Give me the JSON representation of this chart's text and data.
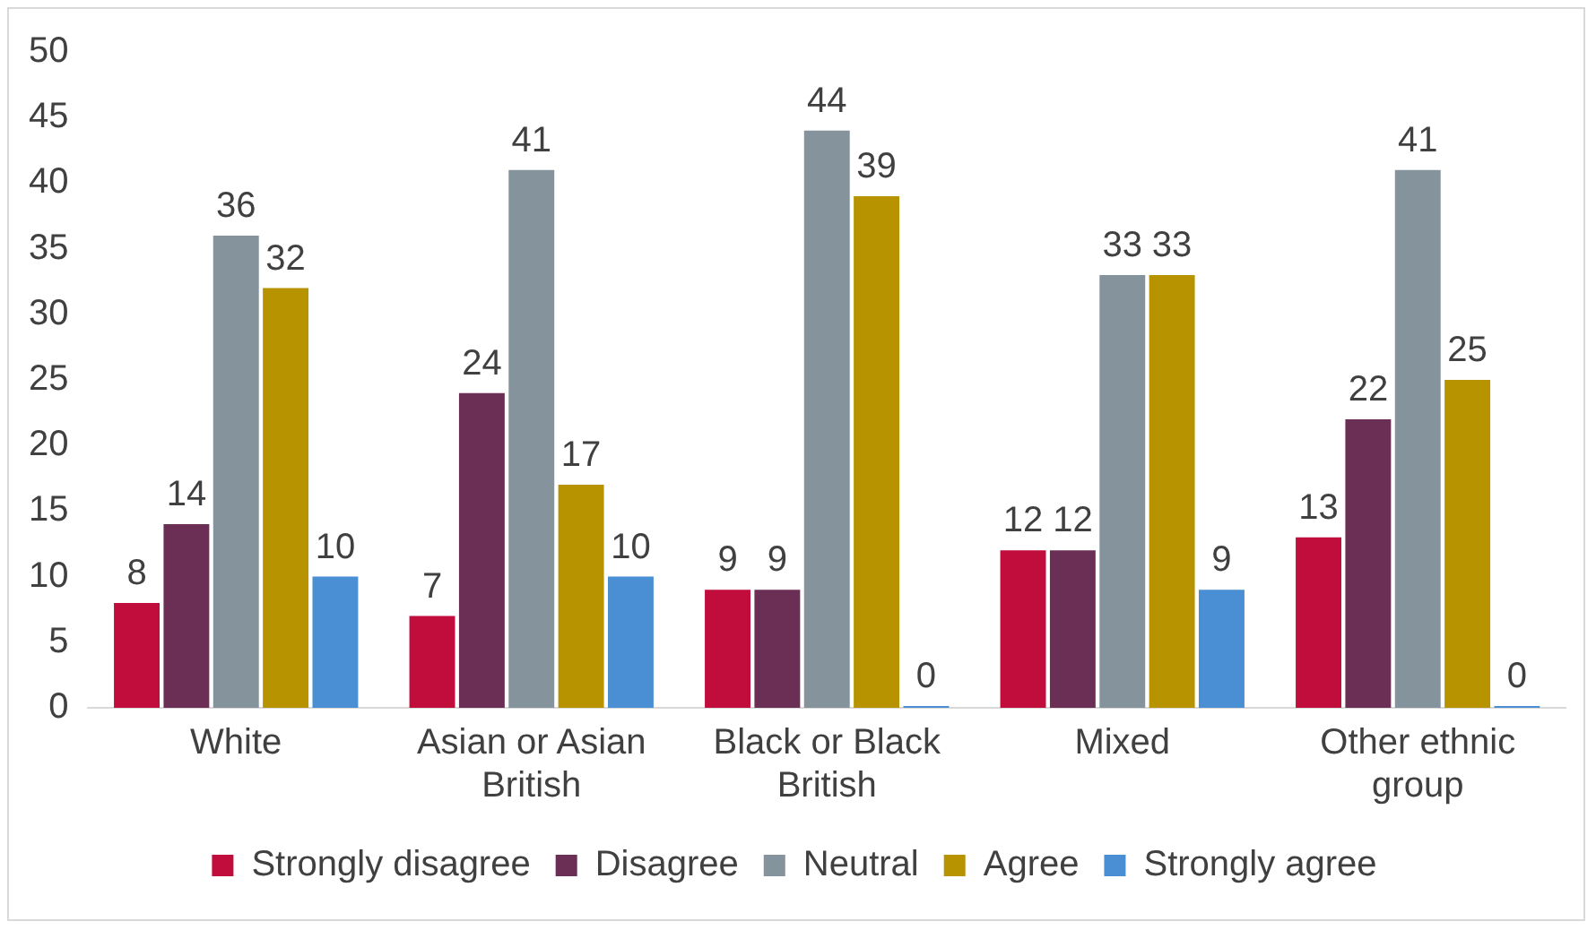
{
  "chart_data": {
    "type": "bar",
    "categories": [
      "White",
      "Asian or Asian British",
      "Black or Black British",
      "Mixed",
      "Other ethnic group"
    ],
    "series": [
      {
        "name": "Strongly disagree",
        "color": "#c00d3c",
        "values": [
          8,
          7,
          9,
          12,
          13
        ]
      },
      {
        "name": "Disagree",
        "color": "#6b2f55",
        "values": [
          14,
          24,
          9,
          12,
          22
        ]
      },
      {
        "name": "Neutral",
        "color": "#85939c",
        "values": [
          36,
          41,
          44,
          33,
          41
        ]
      },
      {
        "name": "Agree",
        "color": "#b89300",
        "values": [
          32,
          17,
          39,
          33,
          25
        ]
      },
      {
        "name": "Strongly agree",
        "color": "#4a8fd3",
        "values": [
          10,
          10,
          0,
          9,
          0
        ]
      }
    ],
    "ylim": [
      0,
      50
    ],
    "yticks": [
      0,
      5,
      10,
      15,
      20,
      25,
      30,
      35,
      40,
      45,
      50
    ],
    "grid": false,
    "legend": "bottom",
    "data_labels": true
  }
}
